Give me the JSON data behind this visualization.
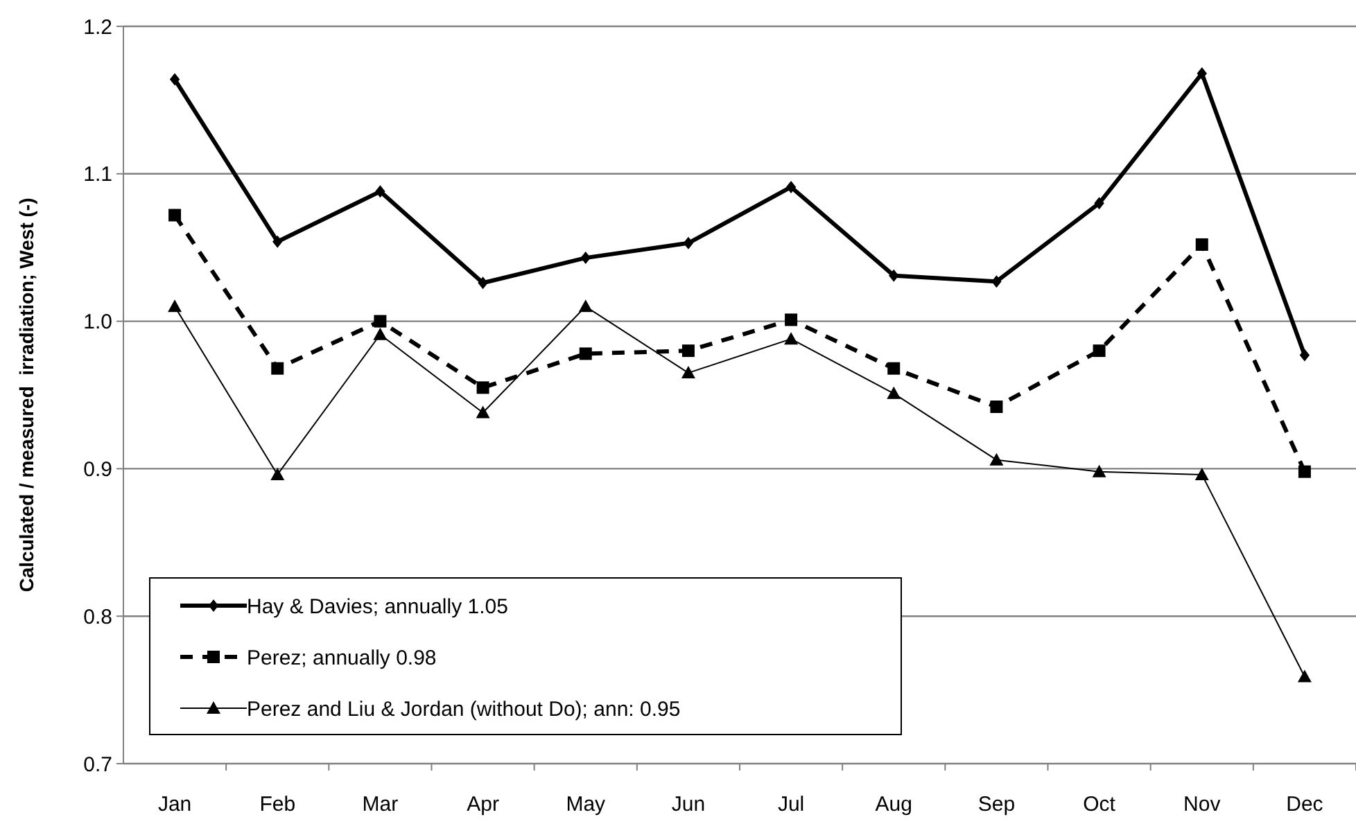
{
  "chart_data": {
    "type": "line",
    "ylabel": "Calculated / measured  irradiation; West (-)",
    "categories": [
      "Jan",
      "Feb",
      "Mar",
      "Apr",
      "May",
      "Jun",
      "Jul",
      "Aug",
      "Sep",
      "Oct",
      "Nov",
      "Dec"
    ],
    "ylim": [
      0.7,
      1.2
    ],
    "yticks": [
      {
        "value": 0.7,
        "label": "0.7"
      },
      {
        "value": 0.8,
        "label": "0.8"
      },
      {
        "value": 0.9,
        "label": "0.9"
      },
      {
        "value": 1.0,
        "label": "1.0"
      },
      {
        "value": 1.1,
        "label": "1.1"
      },
      {
        "value": 1.2,
        "label": "1.2"
      }
    ],
    "grid": "y",
    "legend": "bottom left",
    "series": [
      {
        "name": "Hay & Davies; annually 1.05",
        "color": "#000000",
        "marker": "diamond",
        "line_style": "solid",
        "values": [
          1.164,
          1.054,
          1.088,
          1.026,
          1.043,
          1.053,
          1.091,
          1.031,
          1.027,
          1.08,
          1.168,
          0.977
        ]
      },
      {
        "name": "Perez; annually 0.98",
        "color": "#000000",
        "marker": "square",
        "line_style": "dashed",
        "values": [
          1.072,
          0.968,
          1.0,
          0.955,
          0.978,
          0.98,
          1.001,
          0.968,
          0.942,
          0.98,
          1.052,
          0.898
        ]
      },
      {
        "name": "Perez and Liu & Jordan (without Do); ann: 0.95",
        "color": "#000000",
        "marker": "triangle",
        "line_style": "solid",
        "values": [
          1.01,
          0.896,
          0.991,
          0.938,
          1.01,
          0.965,
          0.988,
          0.951,
          0.906,
          0.898,
          0.896,
          0.759
        ]
      }
    ]
  }
}
